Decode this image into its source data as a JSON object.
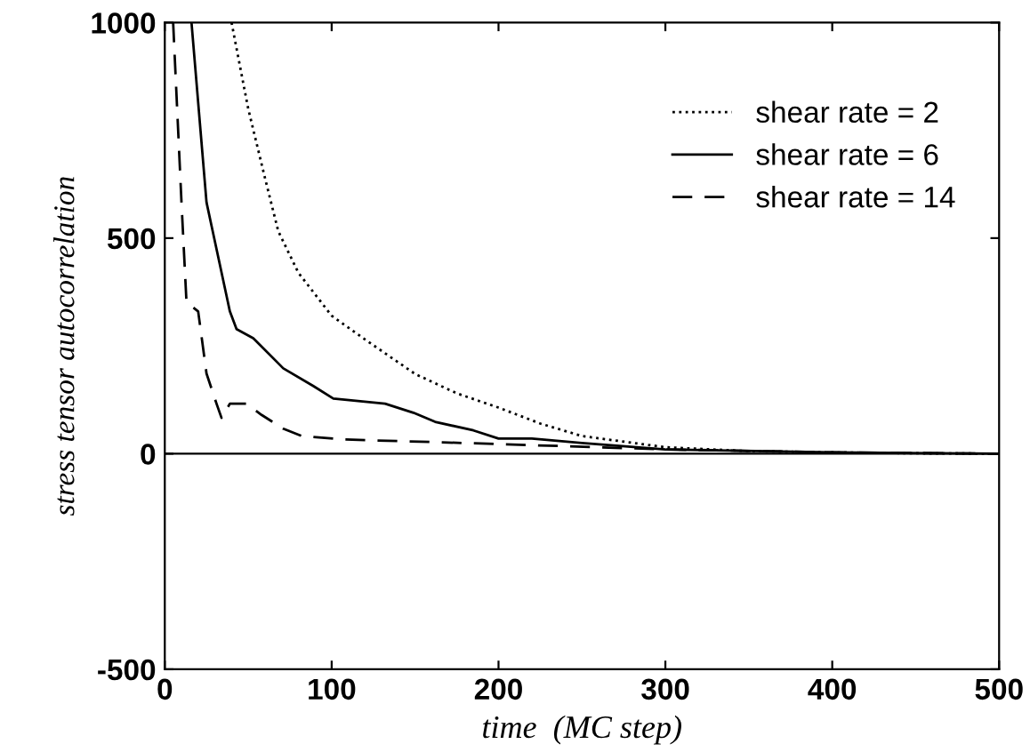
{
  "chart_data": {
    "type": "line",
    "xlabel": "time  (MC step)",
    "ylabel": "stress tensor autocorrelation",
    "xlim": [
      0,
      500
    ],
    "ylim": [
      -500,
      1000
    ],
    "xticks": [
      0,
      100,
      200,
      300,
      400,
      500
    ],
    "yticks": [
      -500,
      0,
      500,
      1000
    ],
    "grid": false,
    "ref_lines": [
      {
        "axis": "y",
        "value": 0,
        "color": "#000000"
      }
    ],
    "legend": "top right",
    "marker": "none",
    "series": [
      {
        "name": "shear rate = 2",
        "color": "#000000",
        "line_style": "dotted",
        "x": [
          40,
          50,
          60,
          68,
          80,
          100,
          120,
          135,
          150,
          175,
          200,
          225,
          250,
          300,
          350,
          400,
          450,
          500
        ],
        "values": [
          1000,
          800,
          640,
          516,
          420,
          320,
          265,
          225,
          185,
          140,
          107,
          70,
          41,
          15,
          6,
          3,
          1,
          0
        ]
      },
      {
        "name": "shear rate = 6",
        "color": "#000000",
        "line_style": "solid",
        "x": [
          16,
          25,
          39,
          43,
          53,
          71,
          89,
          101,
          132,
          149,
          162,
          185,
          200,
          220,
          250,
          300,
          400,
          500
        ],
        "values": [
          1000,
          583,
          330,
          289,
          268,
          198,
          157,
          128,
          116,
          95,
          74,
          54,
          35,
          35,
          25,
          10,
          3,
          0
        ]
      },
      {
        "name": "shear rate = 14",
        "color": "#000000",
        "line_style": "dashed",
        "x": [
          5,
          10,
          13,
          20,
          25,
          31,
          34,
          39,
          49,
          58,
          71,
          82,
          107,
          178,
          300,
          400,
          500
        ],
        "values": [
          1000,
          583,
          351,
          330,
          186,
          116,
          83,
          116,
          116,
          90,
          58,
          41,
          33,
          25,
          10,
          3,
          0
        ]
      }
    ]
  }
}
